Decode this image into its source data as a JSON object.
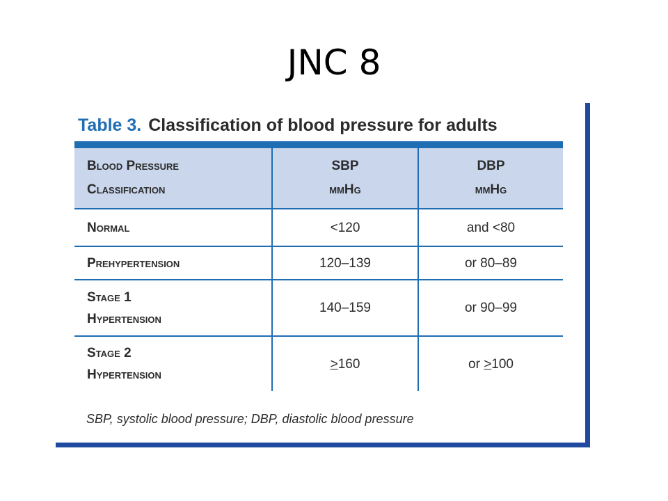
{
  "slide": {
    "title": "JNC 8"
  },
  "table": {
    "caption_number": "Table 3.",
    "caption_text": "Classification of blood pressure for adults",
    "header": {
      "classification_line1": "Blood Pressure",
      "classification_line2": "Classification",
      "sbp_line1": "SBP",
      "sbp_line2": "mmHg",
      "dbp_line1": "DBP",
      "dbp_line2": "mmHg"
    },
    "rows": [
      {
        "classification_line1": "Normal",
        "classification_line2": "",
        "sbp_prefix": "",
        "sbp_op": "",
        "sbp_value": "<120",
        "dbp_prefix": "",
        "dbp_op": "",
        "dbp_value": "and <80"
      },
      {
        "classification_line1": "Prehypertension",
        "classification_line2": "",
        "sbp_prefix": "",
        "sbp_op": "",
        "sbp_value": "120–139",
        "dbp_prefix": "",
        "dbp_op": "",
        "dbp_value": "or 80–89"
      },
      {
        "classification_line1": "Stage 1",
        "classification_line2": "Hypertension",
        "sbp_prefix": "",
        "sbp_op": "",
        "sbp_value": "140–159",
        "dbp_prefix": "",
        "dbp_op": "",
        "dbp_value": "or 90–99"
      },
      {
        "classification_line1": "Stage 2",
        "classification_line2": "Hypertension",
        "sbp_prefix": "",
        "sbp_op": ">",
        "sbp_value": "160",
        "dbp_prefix": "or ",
        "dbp_op": ">",
        "dbp_value": "100"
      }
    ],
    "footnote": "SBP, systolic blood pressure; DBP, diastolic blood pressure"
  },
  "colors": {
    "accent_blue": "#1f6db3",
    "frame_blue": "#1f4aa0",
    "header_fill": "#c9d6ec",
    "text": "#2b2b2b"
  }
}
